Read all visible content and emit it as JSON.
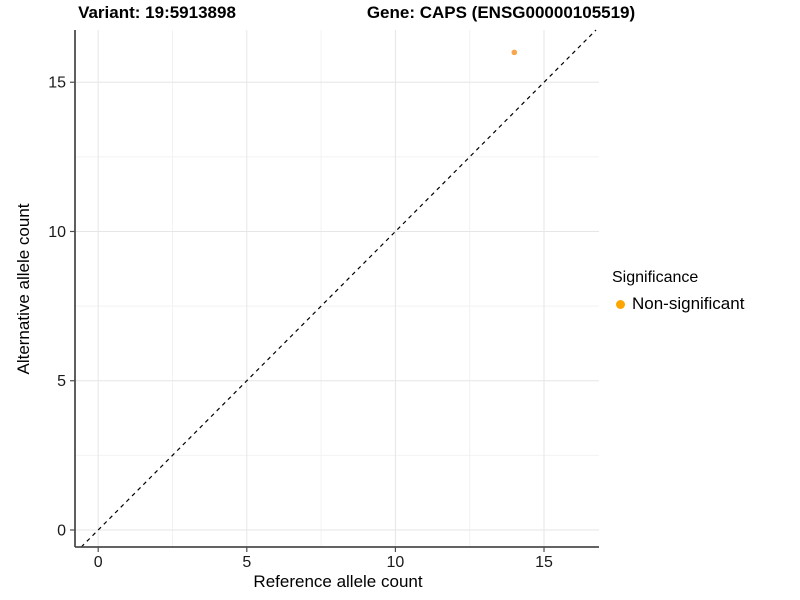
{
  "titles": {
    "variant": "Variant: 19:5913898",
    "gene": "Gene: CAPS (ENSG00000105519)"
  },
  "chart_data": {
    "type": "scatter",
    "title": "",
    "xlabel": "Reference allele count",
    "ylabel": "Alternative allele count",
    "series": [
      {
        "name": "Non-significant",
        "points": [
          {
            "x": 14,
            "y": 16
          }
        ],
        "color": "#F7A64C"
      }
    ],
    "x_major_ticks": [
      0,
      5,
      10,
      15
    ],
    "y_major_ticks": [
      0,
      5,
      10,
      15
    ],
    "x_minor_gridlines": [
      2.5,
      7.5,
      12.5
    ],
    "y_minor_gridlines": [
      2.5,
      7.5,
      12.5
    ],
    "xlim": [
      -0.78,
      16.85
    ],
    "ylim": [
      -0.57,
      16.75
    ],
    "grid": "major and minor, light gray, on white panel",
    "abline": {
      "slope": 1,
      "intercept": 0,
      "style": "dashed",
      "color": "#000000"
    },
    "legend": {
      "title": "Significance",
      "position": "right",
      "items": [
        {
          "label": "Non-significant",
          "color": "#FFA500"
        }
      ]
    }
  },
  "style_colors": {
    "axis_line": "#4d4d4d",
    "tick_label": "#1a1a1a",
    "major_grid": "#e6e6e6",
    "minor_grid": "#f2f2f2"
  }
}
